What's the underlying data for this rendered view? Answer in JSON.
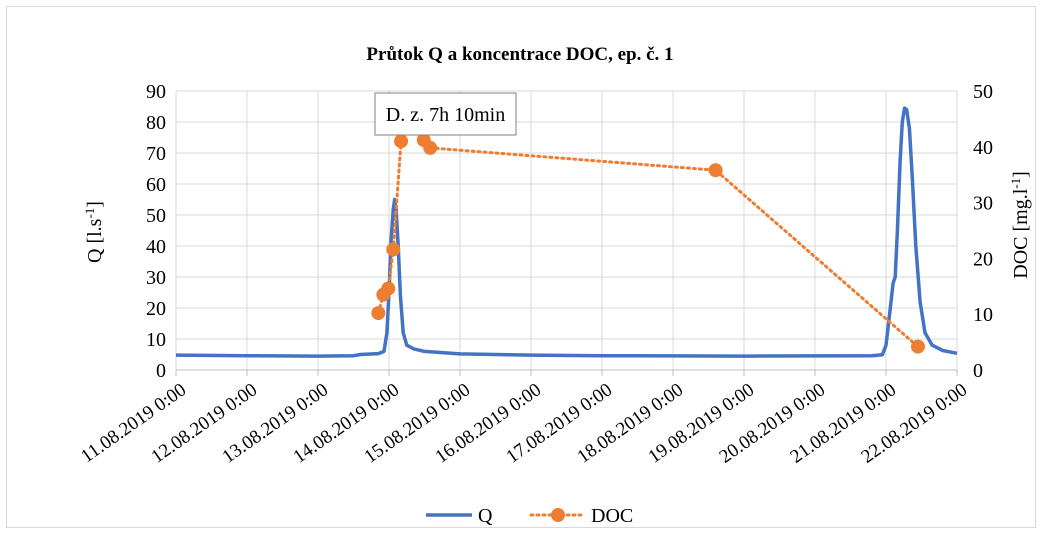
{
  "chart_data": {
    "type": "line",
    "title": "Průtok Q a koncentrace DOC, ep. č. 1",
    "annotation": "D. z. 7h 10min",
    "xlabel": "",
    "x_ticks": [
      "11.08.2019 0:00",
      "12.08.2019 0:00",
      "13.08.2019 0:00",
      "14.08.2019 0:00",
      "15.08.2019 0:00",
      "16.08.2019 0:00",
      "17.08.2019 0:00",
      "18.08.2019 0:00",
      "19.08.2019 0:00",
      "20.08.2019 0:00",
      "21.08.2019 0:00",
      "22.08.2019 0:00"
    ],
    "x_unit": "days since 11.08.2019 0:00",
    "xlim": [
      0,
      11
    ],
    "y_left": {
      "label_main": "Q [l.s",
      "label_sup": "-1",
      "label_end": "]",
      "lim": [
        0,
        90
      ],
      "ticks": [
        0,
        10,
        20,
        30,
        40,
        50,
        60,
        70,
        80,
        90
      ]
    },
    "y_right": {
      "label_main": "DOC [mg.l",
      "label_sup": "-1",
      "label_end": "]",
      "lim": [
        0,
        50
      ],
      "ticks": [
        0,
        10,
        20,
        30,
        40,
        50
      ]
    },
    "grid": true,
    "legend_position": "bottom",
    "series": [
      {
        "name": "Q",
        "axis": "left",
        "color": "#4472c4",
        "style": "solid",
        "points": [
          [
            0,
            4.8
          ],
          [
            1,
            4.6
          ],
          [
            2,
            4.5
          ],
          [
            2.5,
            4.6
          ],
          [
            2.6,
            5.0
          ],
          [
            2.85,
            5.3
          ],
          [
            2.93,
            6
          ],
          [
            2.97,
            12
          ],
          [
            3.0,
            25
          ],
          [
            3.03,
            42
          ],
          [
            3.06,
            52
          ],
          [
            3.08,
            55
          ],
          [
            3.1,
            52
          ],
          [
            3.13,
            40
          ],
          [
            3.16,
            24
          ],
          [
            3.2,
            12
          ],
          [
            3.25,
            8
          ],
          [
            3.35,
            6.8
          ],
          [
            3.5,
            6.0
          ],
          [
            4,
            5.2
          ],
          [
            5,
            4.8
          ],
          [
            6,
            4.6
          ],
          [
            8,
            4.5
          ],
          [
            9.8,
            4.6
          ],
          [
            9.95,
            4.9
          ],
          [
            10.0,
            8
          ],
          [
            10.05,
            18
          ],
          [
            10.1,
            28
          ],
          [
            10.13,
            30
          ],
          [
            10.16,
            45
          ],
          [
            10.2,
            68
          ],
          [
            10.23,
            80
          ],
          [
            10.26,
            84.5
          ],
          [
            10.29,
            84
          ],
          [
            10.33,
            78
          ],
          [
            10.37,
            62
          ],
          [
            10.42,
            40
          ],
          [
            10.48,
            22
          ],
          [
            10.55,
            12
          ],
          [
            10.65,
            8
          ],
          [
            10.8,
            6.3
          ],
          [
            11,
            5.4
          ]
        ]
      },
      {
        "name": "DOC",
        "axis": "right",
        "color": "#ed7d31",
        "style": "dotted",
        "points": [
          [
            2.85,
            10.2
          ],
          [
            2.92,
            13.5
          ],
          [
            2.99,
            14.6
          ],
          [
            3.06,
            21.6
          ],
          [
            3.17,
            41
          ],
          [
            3.25,
            43.9
          ],
          [
            3.33,
            45
          ],
          [
            3.41,
            45.3
          ],
          [
            3.49,
            41.2
          ],
          [
            3.58,
            39.8
          ],
          [
            7.6,
            35.8
          ],
          [
            10.45,
            4.2
          ]
        ]
      }
    ]
  }
}
